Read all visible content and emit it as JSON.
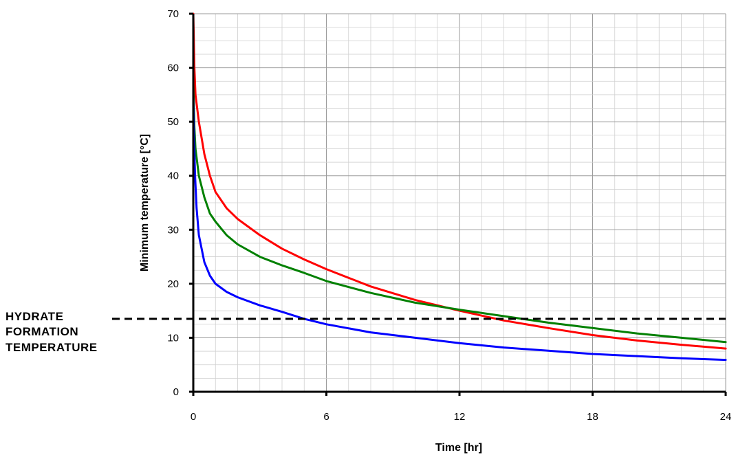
{
  "chart_data": {
    "type": "line",
    "xlabel": "Time [hr]",
    "ylabel": "Minimum temperature [°C]",
    "xlim": [
      0,
      24
    ],
    "ylim": [
      0,
      70
    ],
    "xticks": [
      0,
      6,
      12,
      18,
      24
    ],
    "yticks": [
      0,
      10,
      20,
      30,
      40,
      50,
      60,
      70
    ],
    "grid": true,
    "series": [
      {
        "color": "#ff0000",
        "x": [
          0,
          0.05,
          0.1,
          0.25,
          0.5,
          0.75,
          1,
          1.5,
          2,
          3,
          4,
          5,
          6,
          8,
          10,
          12,
          14,
          16,
          18,
          20,
          22,
          24
        ],
        "y": [
          70,
          60,
          55,
          50,
          44,
          40,
          37,
          34,
          32,
          29,
          26.5,
          24.5,
          22.7,
          19.5,
          17,
          15,
          13.2,
          11.8,
          10.5,
          9.5,
          8.7,
          8
        ]
      },
      {
        "color": "#008000",
        "x": [
          0,
          0.05,
          0.1,
          0.25,
          0.5,
          0.75,
          1,
          1.5,
          2,
          3,
          4,
          5,
          6,
          8,
          10,
          12,
          14,
          16,
          18,
          20,
          22,
          24
        ],
        "y": [
          57,
          49,
          45,
          40,
          36,
          33,
          31.5,
          29,
          27.3,
          25,
          23.4,
          22,
          20.5,
          18.3,
          16.5,
          15.2,
          14,
          12.8,
          11.8,
          10.8,
          10,
          9.2
        ]
      },
      {
        "color": "#0000ff",
        "x": [
          0,
          0.03,
          0.08,
          0.15,
          0.25,
          0.5,
          0.75,
          1,
          1.5,
          2,
          3,
          4,
          5,
          6,
          8,
          10,
          12,
          14,
          16,
          18,
          20,
          22,
          24
        ],
        "y": [
          55,
          47,
          40,
          34,
          29,
          24,
          21.5,
          20,
          18.5,
          17.5,
          16,
          14.8,
          13.5,
          12.5,
          11,
          10,
          9,
          8.2,
          7.6,
          7,
          6.6,
          6.2,
          5.9
        ]
      }
    ],
    "reference_line": {
      "y": 13.5,
      "style": "dashed",
      "color": "#000000"
    },
    "annotation": [
      "HYDRATE",
      "FORMATION",
      "TEMPERATURE"
    ]
  }
}
